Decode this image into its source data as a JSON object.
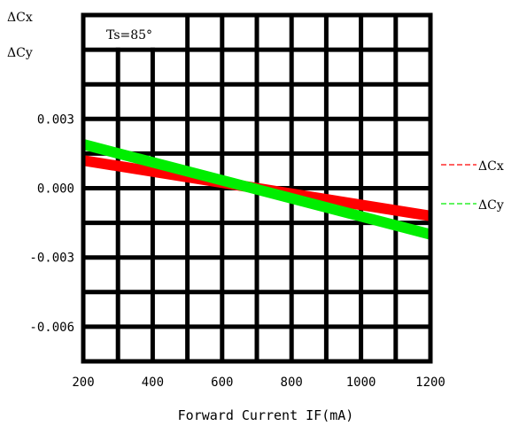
{
  "chart_data": {
    "type": "line",
    "annotation": "Ts=85°",
    "xlabel": "Forward Current IF(mA)",
    "ylabel_lines": [
      "ΔCx",
      "ΔCy"
    ],
    "x_ticks": [
      "200",
      "400",
      "600",
      "800",
      "1000",
      "1200"
    ],
    "y_ticks": [
      "0.003",
      "0.000",
      "-0.003",
      "-0.006"
    ],
    "xlim": [
      200,
      1200
    ],
    "ylim": [
      -0.0075,
      0.0075
    ],
    "grid": true,
    "legend_position": "right",
    "series": [
      {
        "name": "ΔCx",
        "color": "#ff0000",
        "x": [
          200,
          1200
        ],
        "y": [
          0.0012,
          -0.0012
        ]
      },
      {
        "name": "ΔCy",
        "color": "#00ee00",
        "x": [
          200,
          1200
        ],
        "y": [
          0.0019,
          -0.002
        ]
      }
    ]
  }
}
